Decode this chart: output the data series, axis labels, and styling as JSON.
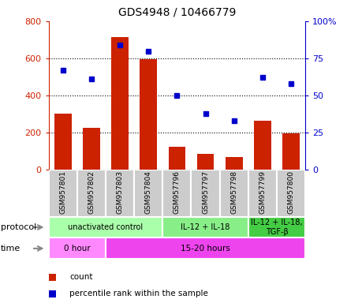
{
  "title": "GDS4948 / 10466779",
  "samples": [
    "GSM957801",
    "GSM957802",
    "GSM957803",
    "GSM957804",
    "GSM957796",
    "GSM957797",
    "GSM957798",
    "GSM957799",
    "GSM957800"
  ],
  "counts": [
    300,
    225,
    715,
    595,
    125,
    85,
    70,
    265,
    195
  ],
  "percentile_ranks": [
    67,
    61,
    84,
    80,
    50,
    38,
    33,
    62,
    58
  ],
  "ylim_left": [
    0,
    800
  ],
  "ylim_right": [
    0,
    100
  ],
  "yticks_left": [
    0,
    200,
    400,
    600,
    800
  ],
  "yticks_right": [
    0,
    25,
    50,
    75,
    100
  ],
  "bar_color": "#cc2200",
  "dot_color": "#0000cc",
  "protocol_groups": [
    {
      "label": "unactivated control",
      "start": 0,
      "end": 4,
      "color": "#aaffaa"
    },
    {
      "label": "IL-12 + IL-18",
      "start": 4,
      "end": 7,
      "color": "#88ee88"
    },
    {
      "label": "IL-12 + IL-18,\nTGF-β",
      "start": 7,
      "end": 9,
      "color": "#44cc44"
    }
  ],
  "time_groups": [
    {
      "label": "0 hour",
      "start": 0,
      "end": 2,
      "color": "#ff88ff"
    },
    {
      "label": "15-20 hours",
      "start": 2,
      "end": 9,
      "color": "#ee44ee"
    }
  ],
  "protocol_label": "protocol",
  "time_label": "time",
  "legend": [
    {
      "color": "#cc2200",
      "label": "count"
    },
    {
      "color": "#0000cc",
      "label": "percentile rank within the sample"
    }
  ],
  "left_axis_color": "#cc2200",
  "right_axis_color": "#0000cc",
  "sample_bg_color": "#cccccc",
  "sample_border_color": "#ffffff"
}
